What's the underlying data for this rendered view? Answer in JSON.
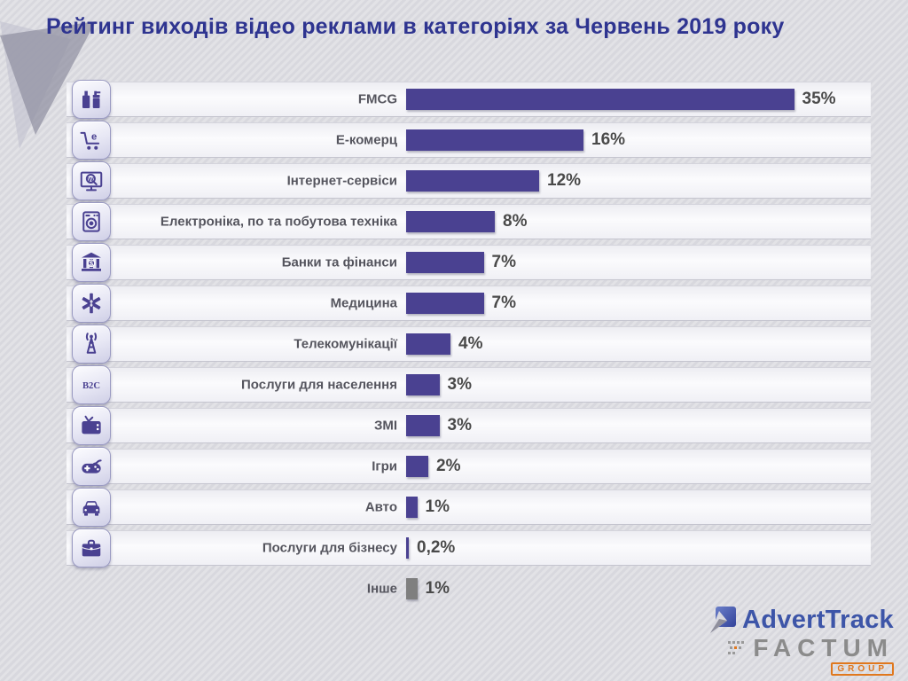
{
  "title": "Рейтинг виходів відео реклами в категоріях за Червень 2019 року",
  "chart_data": {
    "type": "bar",
    "orientation": "horizontal",
    "unit": "%",
    "xlim": [
      0,
      35
    ],
    "categories": [
      "FMCG",
      "Е-комерц",
      "Інтернет-сервіси",
      "Електроніка, по та побутова техніка",
      "Банки та фінанси",
      "Медицина",
      "Телекомунікації",
      "Послуги для населення",
      "ЗМІ",
      "Ігри",
      "Авто",
      "Послуги для бізнесу",
      "Інше"
    ],
    "values": [
      35,
      16,
      12,
      8,
      7,
      7,
      4,
      3,
      3,
      2,
      1,
      0.2,
      1
    ],
    "value_labels": [
      "35%",
      "16%",
      "12%",
      "8%",
      "7%",
      "7%",
      "4%",
      "3%",
      "3%",
      "2%",
      "1%",
      "0,2%",
      "1%"
    ],
    "icons": [
      "fmcg-icon",
      "ecommerce-cart-icon",
      "internet-services-icon",
      "electronics-appliance-icon",
      "bank-finance-icon",
      "medicine-icon",
      "telecom-tower-icon",
      "b2c-icon",
      "media-tv-icon",
      "games-gamepad-icon",
      "auto-car-icon",
      "business-briefcase-icon",
      null
    ],
    "bar_color": "#4a4191",
    "other_bar_color": "#7f7f7f",
    "grid": false,
    "legend": false
  },
  "icon_glyphs": {
    "cart_letter": "e",
    "monitor_letter": "w",
    "bank_symbol": "$",
    "b2c_label": "B2C"
  },
  "logo": {
    "brand": "AdvertTrack",
    "company": "FACTUM",
    "group": "GROUP"
  }
}
